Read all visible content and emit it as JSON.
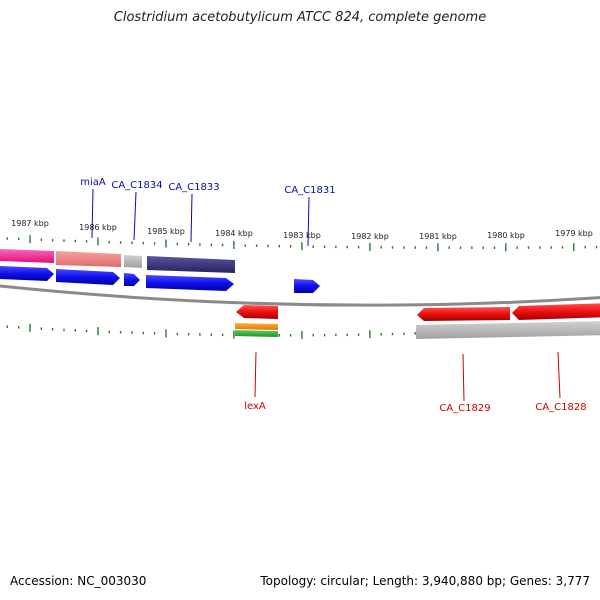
{
  "title": "Clostridium acetobutylicum ATCC 824, complete genome",
  "footer": {
    "accession": "Accession: NC_003030",
    "summary": "Topology: circular; Length: 3,940,880 bp; Genes: 3,777"
  },
  "scale": {
    "unit": "kbp",
    "labels": [
      "1987 kbp",
      "1986 kbp",
      "1985 kbp",
      "1984 kbp",
      "1983 kbp",
      "1982 kbp",
      "1981 kbp",
      "1980 kbp",
      "1979 kbp"
    ]
  },
  "gene_labels": {
    "forward": [
      "miaA",
      "CA_C1834",
      "CA_C1833",
      "CA_C1831"
    ],
    "reverse": [
      "lexA",
      "CA_C1829",
      "CA_C1828"
    ]
  },
  "colors": {
    "forward_gene": "#1010ee",
    "reverse_gene": "#ee1010",
    "forward_label": "#0a0aaa",
    "reverse_label": "#cc0000",
    "ticks": "#2a7a2a",
    "backbone": "#888888"
  }
}
